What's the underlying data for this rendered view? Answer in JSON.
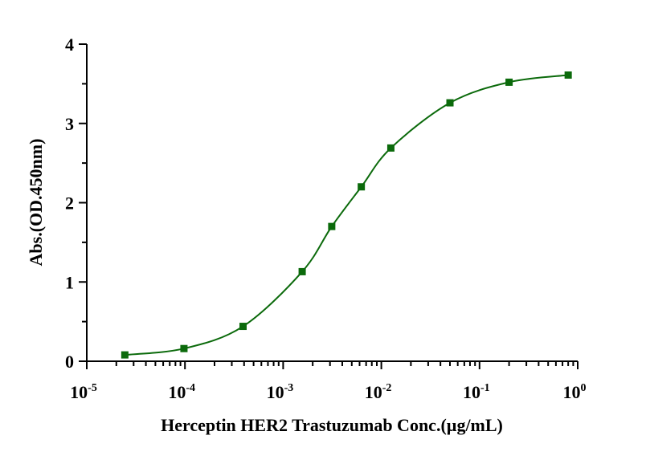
{
  "chart_data": {
    "type": "line",
    "x_label": "Herceptin HER2 Trastuzumab Conc.(µg/mL)",
    "y_label": "Abs.(OD.450nm)",
    "x_scale": "log",
    "x": [
      2.44140625e-05,
      9.765625e-05,
      0.000390625,
      0.0015625,
      0.003125,
      0.00625,
      0.0125,
      0.05,
      0.2,
      0.8
    ],
    "series": [
      {
        "name": "Herceptin",
        "color": "#0b6a0b",
        "values": [
          0.08,
          0.16,
          0.44,
          1.13,
          1.7,
          2.2,
          2.69,
          3.26,
          3.52,
          3.61
        ]
      }
    ],
    "xlim": [
      1e-05,
      1
    ],
    "xticks": [
      {
        "value": 1e-05,
        "label": "10",
        "exponent": "-5"
      },
      {
        "value": 0.0001,
        "label": "10",
        "exponent": "-4"
      },
      {
        "value": 0.001,
        "label": "10",
        "exponent": "-3"
      },
      {
        "value": 0.01,
        "label": "10",
        "exponent": "-2"
      },
      {
        "value": 0.1,
        "label": "10",
        "exponent": "-1"
      },
      {
        "value": 1,
        "label": "10",
        "exponent": "0"
      }
    ],
    "ylim": [
      0,
      4
    ],
    "yticks": [
      0,
      1,
      2,
      3,
      4
    ],
    "minor_ticks": true,
    "grid": false
  }
}
